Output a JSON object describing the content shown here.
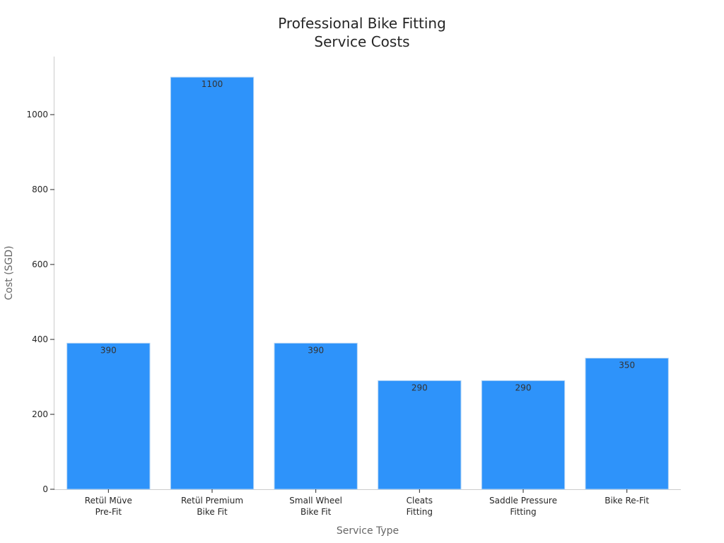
{
  "chart_data": {
    "type": "bar",
    "title": [
      "Professional Bike Fitting",
      "Service Costs"
    ],
    "xlabel": "Service Type",
    "ylabel": "Cost (SGD)",
    "categories": [
      [
        "Retül Müve",
        "Pre-Fit"
      ],
      [
        "Retül Premium",
        "Bike Fit"
      ],
      [
        "Small Wheel",
        "Bike Fit"
      ],
      [
        "Cleats",
        "Fitting"
      ],
      [
        "Saddle Pressure",
        "Fitting"
      ],
      [
        "Bike Re-Fit"
      ]
    ],
    "values": [
      390,
      1100,
      390,
      290,
      290,
      350
    ],
    "data_labels": [
      "390",
      "1100",
      "390",
      "290",
      "290",
      "350"
    ],
    "yticks": [
      0,
      200,
      400,
      600,
      800,
      1000
    ],
    "ylim": [
      0,
      1155
    ],
    "grid": false,
    "legend": "none",
    "bar_color": "#2e93fa",
    "bar_edge_color": "#b3d4f5"
  }
}
